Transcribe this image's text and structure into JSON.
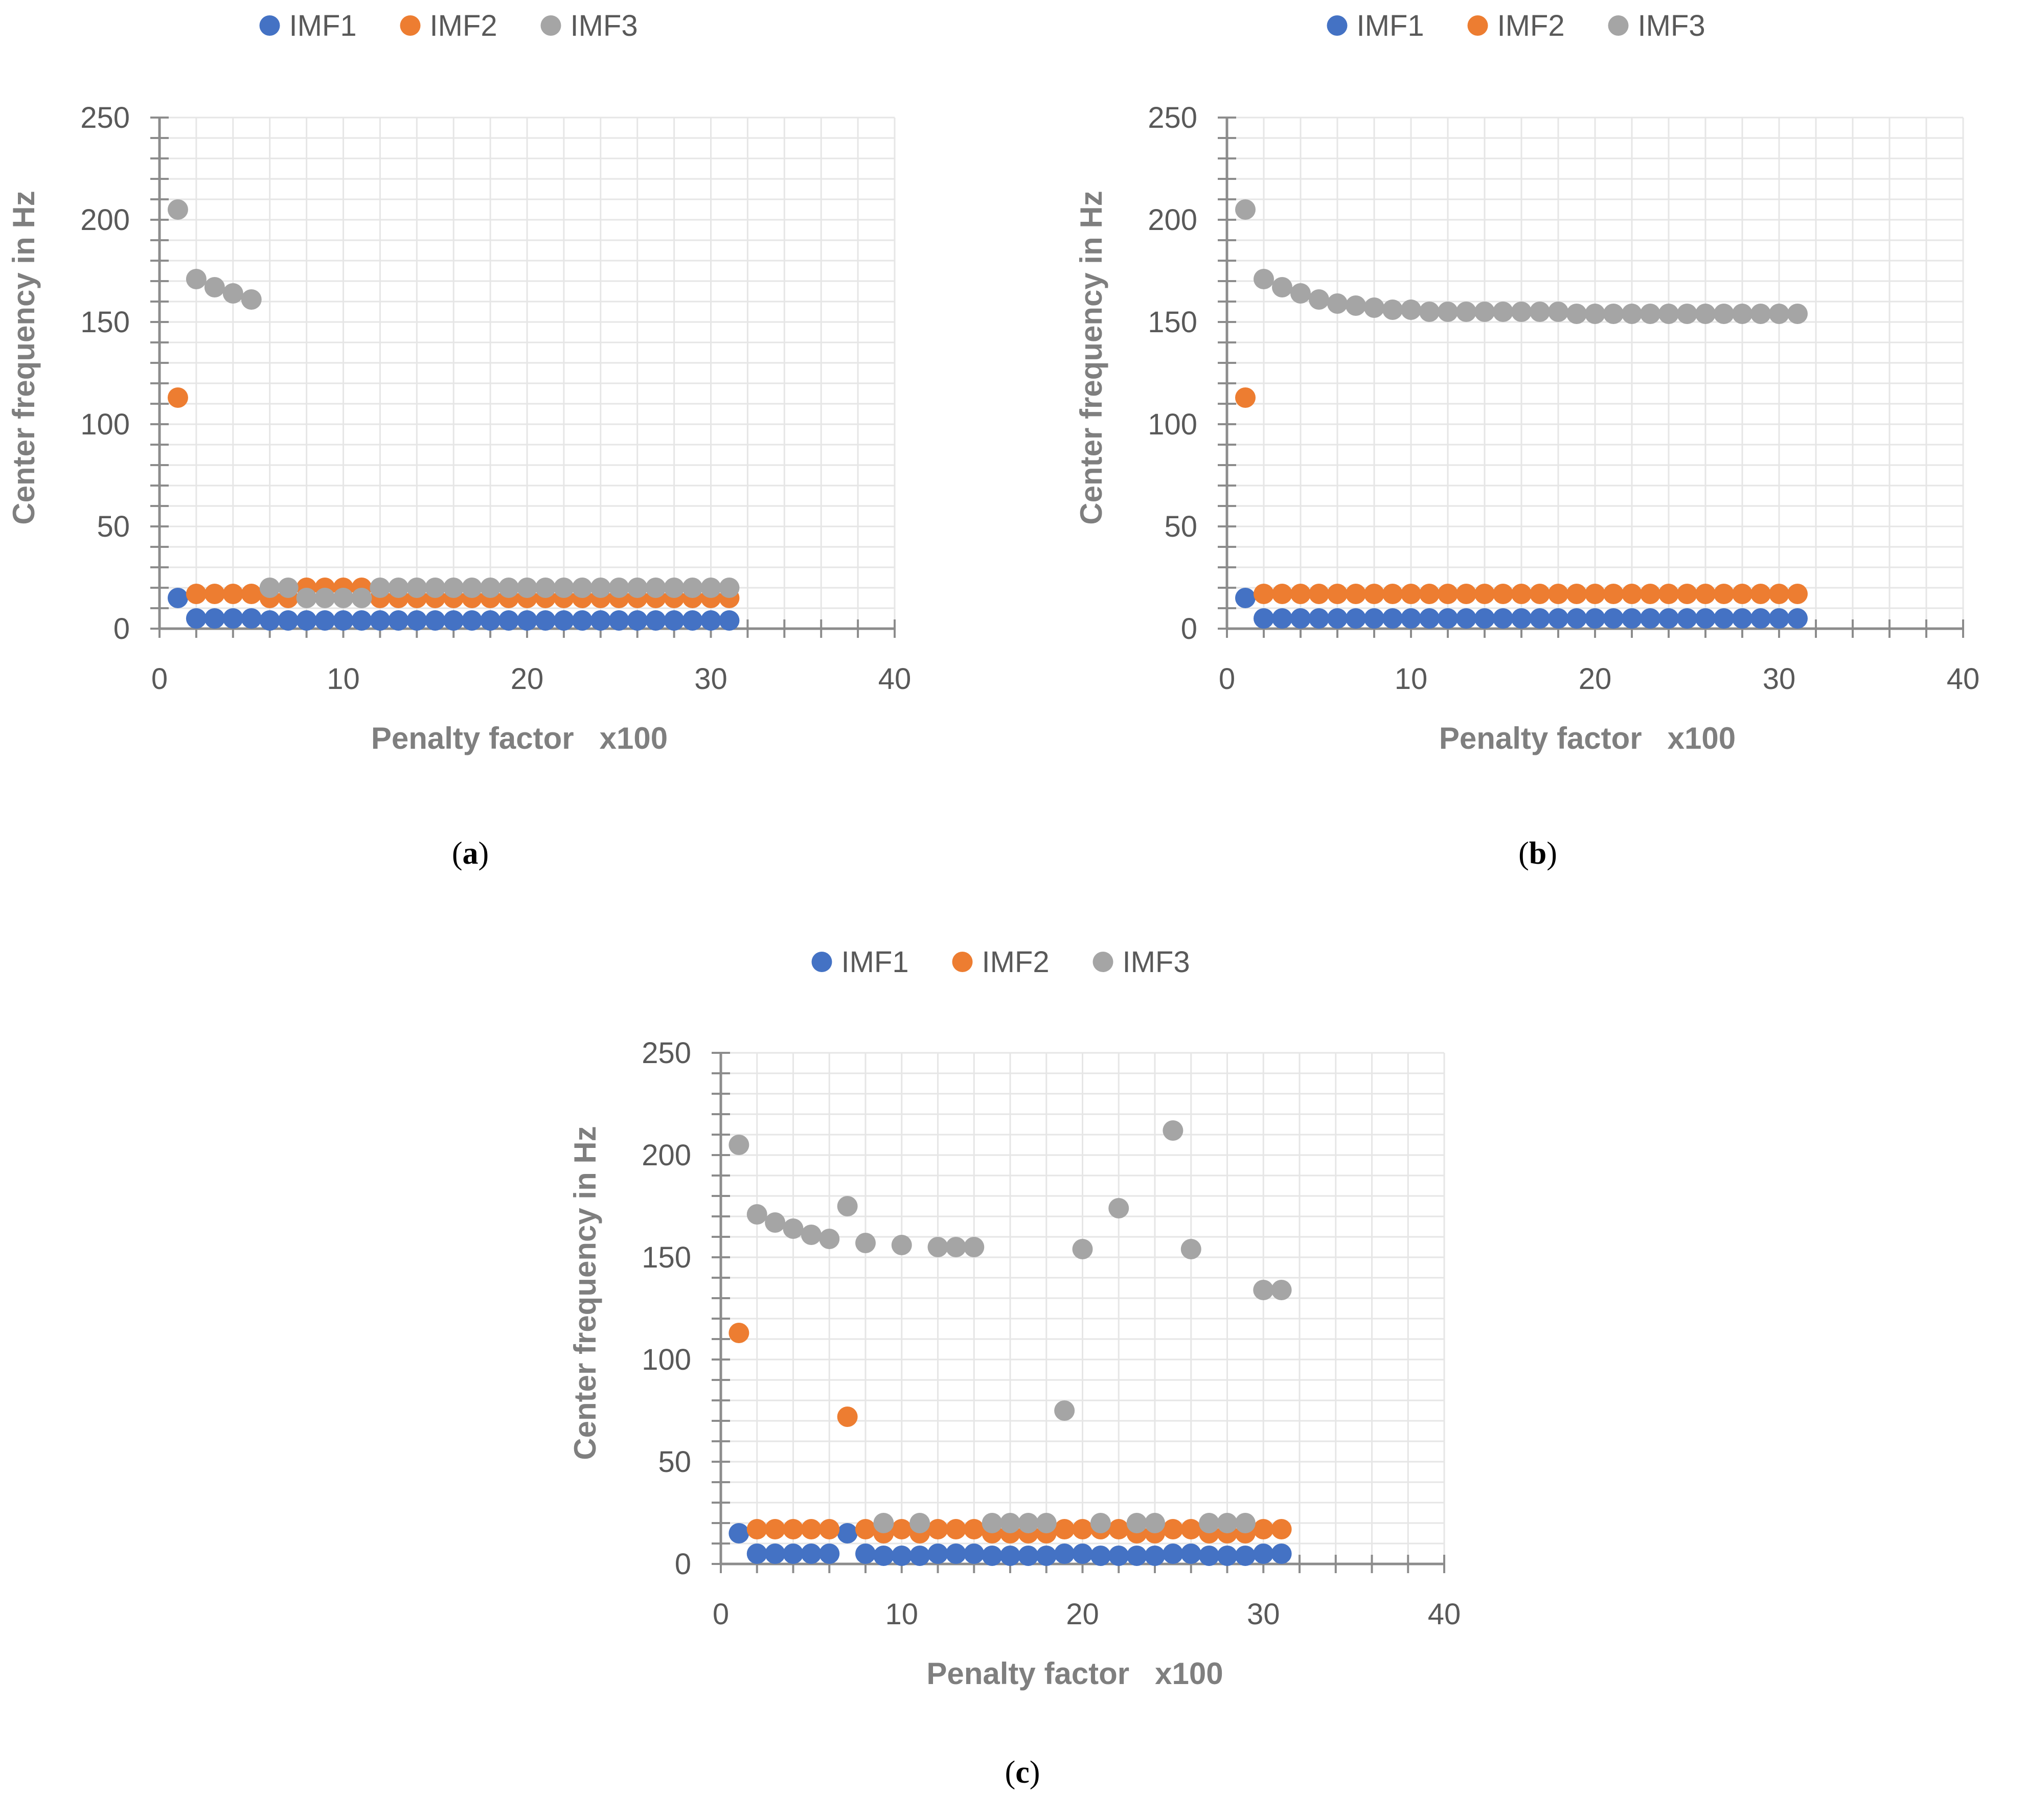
{
  "panels": [
    {
      "id": "a",
      "caption": "(a)",
      "caption_letter": "a",
      "chart_data": {
        "type": "scatter",
        "xlabel": "Penalty factor   x100",
        "ylabel": "Center frequency in Hz",
        "xlim": [
          0,
          40
        ],
        "ylim": [
          0,
          250
        ],
        "xticks": [
          0,
          10,
          20,
          30,
          40
        ],
        "yticks": [
          0,
          50,
          100,
          150,
          200,
          250
        ],
        "grid": true,
        "legend": "top",
        "x": [
          1,
          2,
          3,
          4,
          5,
          6,
          7,
          8,
          9,
          10,
          11,
          12,
          13,
          14,
          15,
          16,
          17,
          18,
          19,
          20,
          21,
          22,
          23,
          24,
          25,
          26,
          27,
          28,
          29,
          30,
          31
        ],
        "series": [
          {
            "name": "IMF1",
            "color": "#4472c4",
            "values": [
              15,
              5,
              5,
              5,
              5,
              4,
              4,
              4,
              4,
              4,
              4,
              4,
              4,
              4,
              4,
              4,
              4,
              4,
              4,
              4,
              4,
              4,
              4,
              4,
              4,
              4,
              4,
              4,
              4,
              4,
              4
            ]
          },
          {
            "name": "IMF2",
            "color": "#ed7d31",
            "values": [
              113,
              17,
              17,
              17,
              17,
              15,
              15,
              20,
              20,
              20,
              20,
              15,
              15,
              15,
              15,
              15,
              15,
              15,
              15,
              15,
              15,
              15,
              15,
              15,
              15,
              15,
              15,
              15,
              15,
              15,
              15
            ]
          },
          {
            "name": "IMF3",
            "color": "#a5a5a5",
            "values": [
              205,
              171,
              167,
              164,
              161,
              20,
              20,
              15,
              15,
              15,
              15,
              20,
              20,
              20,
              20,
              20,
              20,
              20,
              20,
              20,
              20,
              20,
              20,
              20,
              20,
              20,
              20,
              20,
              20,
              20,
              20
            ]
          }
        ]
      }
    },
    {
      "id": "b",
      "caption": "(b)",
      "caption_letter": "b",
      "chart_data": {
        "type": "scatter",
        "xlabel": "Penalty factor   x100",
        "ylabel": "Center frequency in Hz",
        "xlim": [
          0,
          40
        ],
        "ylim": [
          0,
          250
        ],
        "xticks": [
          0,
          10,
          20,
          30,
          40
        ],
        "yticks": [
          0,
          50,
          100,
          150,
          200,
          250
        ],
        "grid": true,
        "legend": "top",
        "x": [
          1,
          2,
          3,
          4,
          5,
          6,
          7,
          8,
          9,
          10,
          11,
          12,
          13,
          14,
          15,
          16,
          17,
          18,
          19,
          20,
          21,
          22,
          23,
          24,
          25,
          26,
          27,
          28,
          29,
          30,
          31
        ],
        "series": [
          {
            "name": "IMF1",
            "color": "#4472c4",
            "values": [
              15,
              5,
              5,
              5,
              5,
              5,
              5,
              5,
              5,
              5,
              5,
              5,
              5,
              5,
              5,
              5,
              5,
              5,
              5,
              5,
              5,
              5,
              5,
              5,
              5,
              5,
              5,
              5,
              5,
              5,
              5
            ]
          },
          {
            "name": "IMF2",
            "color": "#ed7d31",
            "values": [
              113,
              17,
              17,
              17,
              17,
              17,
              17,
              17,
              17,
              17,
              17,
              17,
              17,
              17,
              17,
              17,
              17,
              17,
              17,
              17,
              17,
              17,
              17,
              17,
              17,
              17,
              17,
              17,
              17,
              17,
              17
            ]
          },
          {
            "name": "IMF3",
            "color": "#a5a5a5",
            "values": [
              205,
              171,
              167,
              164,
              161,
              159,
              158,
              157,
              156,
              156,
              155,
              155,
              155,
              155,
              155,
              155,
              155,
              155,
              154,
              154,
              154,
              154,
              154,
              154,
              154,
              154,
              154,
              154,
              154,
              154,
              154
            ]
          }
        ]
      }
    },
    {
      "id": "c",
      "caption": "(c)",
      "caption_letter": "c",
      "chart_data": {
        "type": "scatter",
        "xlabel": "Penalty factor   x100",
        "ylabel": "Center frequency in Hz",
        "xlim": [
          0,
          40
        ],
        "ylim": [
          0,
          250
        ],
        "xticks": [
          0,
          10,
          20,
          30,
          40
        ],
        "yticks": [
          0,
          50,
          100,
          150,
          200,
          250
        ],
        "grid": true,
        "legend": "top",
        "x": [
          1,
          2,
          3,
          4,
          5,
          6,
          7,
          8,
          9,
          10,
          11,
          12,
          13,
          14,
          15,
          16,
          17,
          18,
          19,
          20,
          21,
          22,
          23,
          24,
          25,
          26,
          27,
          28,
          29,
          30,
          31
        ],
        "series": [
          {
            "name": "IMF1",
            "color": "#4472c4",
            "values": [
              15,
              5,
              5,
              5,
              5,
              5,
              15,
              5,
              4,
              4,
              4,
              5,
              5,
              5,
              4,
              4,
              4,
              4,
              5,
              5,
              4,
              4,
              4,
              4,
              5,
              5,
              4,
              4,
              4,
              5,
              5
            ]
          },
          {
            "name": "IMF2",
            "color": "#ed7d31",
            "values": [
              113,
              17,
              17,
              17,
              17,
              17,
              72,
              17,
              15,
              17,
              15,
              17,
              17,
              17,
              15,
              15,
              15,
              15,
              17,
              17,
              17,
              17,
              15,
              15,
              17,
              17,
              15,
              15,
              15,
              17,
              17
            ]
          },
          {
            "name": "IMF3",
            "color": "#a5a5a5",
            "values": [
              205,
              171,
              167,
              164,
              161,
              159,
              175,
              157,
              20,
              156,
              20,
              155,
              155,
              155,
              20,
              20,
              20,
              20,
              75,
              154,
              20,
              174,
              20,
              20,
              212,
              154,
              20,
              20,
              20,
              134,
              134
            ]
          }
        ]
      }
    }
  ]
}
